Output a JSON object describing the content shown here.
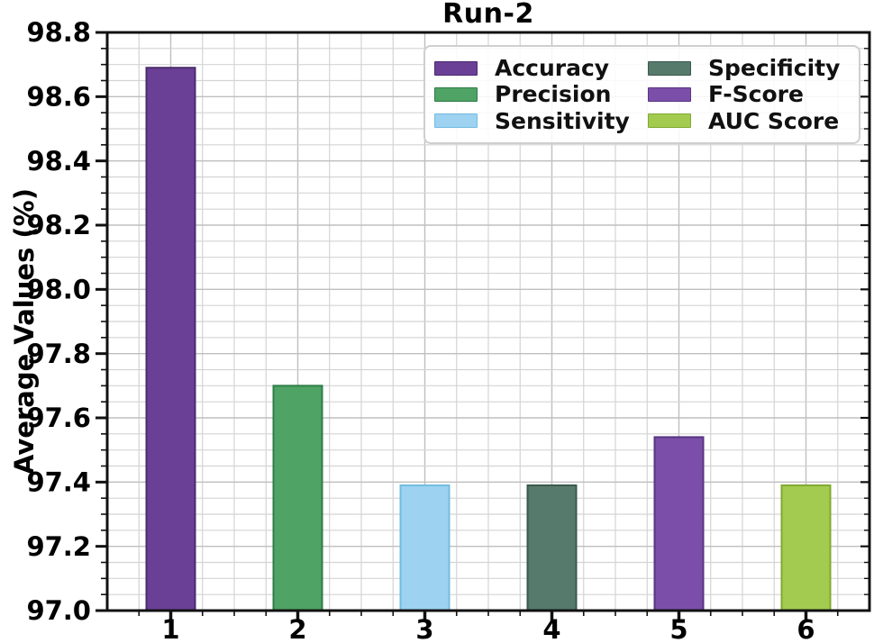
{
  "title": "Run-2",
  "chart_data": {
    "type": "bar",
    "title": "Run-2",
    "xlabel": "",
    "ylabel": "Average Values (%)",
    "categories": [
      "1",
      "2",
      "3",
      "4",
      "5",
      "6"
    ],
    "series": [
      {
        "name": "Accuracy",
        "category": "1",
        "value": 98.69,
        "color": "#6a4096",
        "edge_color": "#4a2c6e"
      },
      {
        "name": "Precision",
        "category": "2",
        "value": 97.7,
        "color": "#4fa364",
        "edge_color": "#2f7d47"
      },
      {
        "name": "Sensitivity",
        "category": "3",
        "value": 97.39,
        "color": "#9dd2f0",
        "edge_color": "#72bce2"
      },
      {
        "name": "Specificity",
        "category": "4",
        "value": 97.39,
        "color": "#567a6c",
        "edge_color": "#3b594e"
      },
      {
        "name": "F-Score",
        "category": "5",
        "value": 97.54,
        "color": "#7b4fa9",
        "edge_color": "#58357f"
      },
      {
        "name": "AUC Score",
        "category": "6",
        "value": 97.39,
        "color": "#a3cb4f",
        "edge_color": "#82a832"
      }
    ],
    "ylim": [
      97.0,
      98.8
    ],
    "yticks": [
      97.0,
      97.2,
      97.4,
      97.6,
      97.8,
      98.0,
      98.2,
      98.4,
      98.6,
      98.8
    ],
    "ytick_labels": [
      "97.0",
      "97.2",
      "97.4",
      "97.6",
      "97.8",
      "98.0",
      "98.2",
      "98.4",
      "98.6",
      "98.8"
    ],
    "y_minor_step": 0.05,
    "x_minor_divisions": 4,
    "grid": true,
    "legend": {
      "position": "upper right",
      "columns": 2,
      "entries": [
        "Accuracy",
        "Precision",
        "Sensitivity",
        "Specificity",
        "F-Score",
        "AUC Score"
      ]
    }
  },
  "colors": {
    "background": "#ffffff",
    "spine": "#111111",
    "grid_major": "#bfbfbf",
    "grid_minor": "#d4d4d4",
    "tick": "#111111"
  }
}
